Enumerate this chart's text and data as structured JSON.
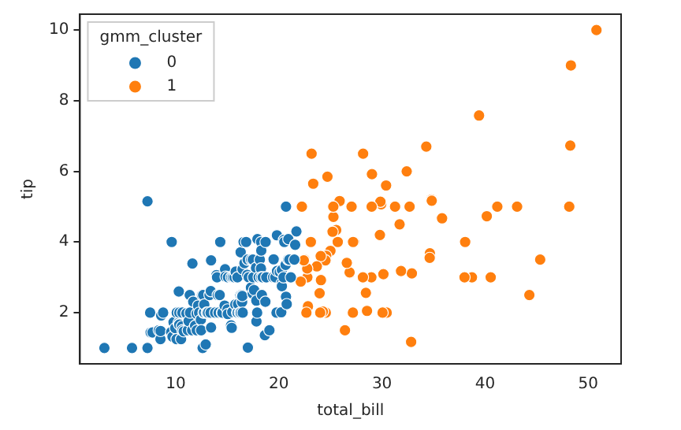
{
  "chart_data": {
    "type": "scatter",
    "xlabel": "total_bill",
    "ylabel": "tip",
    "legend_title": "gmm_cluster",
    "legend": "top left",
    "marker": "circle",
    "grid": false,
    "xlim": [
      0.7,
      53.2
    ],
    "xticks": [
      10,
      20,
      30,
      40,
      50
    ],
    "ylim": [
      0.55,
      10.45
    ],
    "yticks": [
      2,
      4,
      6,
      8,
      10
    ],
    "series": [
      {
        "name": "0",
        "color": "#1f77b4",
        "x": [
          3.07,
          5.75,
          7.25,
          7.25,
          7.51,
          7.56,
          7.74,
          8.35,
          8.51,
          8.52,
          8.58,
          8.77,
          9.55,
          9.6,
          9.68,
          9.78,
          9.94,
          10.07,
          10.09,
          10.27,
          10.29,
          10.33,
          10.34,
          10.34,
          10.51,
          10.59,
          10.63,
          10.65,
          10.77,
          11.02,
          11.17,
          11.24,
          11.35,
          11.38,
          11.59,
          11.61,
          11.69,
          11.87,
          12.02,
          12.03,
          12.16,
          12.26,
          12.43,
          12.46,
          12.54,
          12.6,
          12.66,
          12.69,
          12.74,
          12.76,
          12.9,
          13,
          13.03,
          13.13,
          13.27,
          13.37,
          13.39,
          13.42,
          13.42,
          13.81,
          13.94,
          14,
          14.07,
          14.15,
          14.26,
          14.31,
          14.48,
          14.52,
          14.73,
          14.78,
          14.83,
          15.01,
          15.04,
          15.06,
          15.36,
          15.38,
          15.42,
          15.48,
          15.53,
          15.69,
          15.77,
          15.81,
          15.95,
          15.98,
          16,
          16.04,
          16.21,
          16.27,
          16.29,
          16.31,
          16.4,
          16.43,
          16.45,
          16.47,
          16.49,
          16.58,
          16.66,
          16.82,
          16.93,
          16.97,
          16.99,
          17.07,
          17.29,
          17.31,
          17.46,
          17.47,
          17.51,
          17.59,
          17.78,
          17.81,
          17.82,
          17.89,
          17.92,
          18.04,
          18.15,
          18.24,
          18.26,
          18.28,
          18.29,
          18.29,
          18.35,
          18.43,
          18.64,
          18.69,
          18.71,
          18.78,
          19.08,
          19.44,
          19.49,
          19.65,
          19.77,
          19.81,
          19.82,
          20.08,
          20.23,
          20.27,
          20.29,
          20.29,
          20.45,
          20.49,
          20.53,
          20.65,
          20.69,
          20.69,
          20.76,
          20.9,
          20.92,
          21.01,
          21.16,
          21.5,
          21.58,
          21.7
        ],
        "values": [
          1,
          1,
          1,
          5.15,
          2,
          1.44,
          1.44,
          1.5,
          1.25,
          1.48,
          1.92,
          2,
          1.45,
          4,
          1.32,
          1.73,
          1.56,
          1.25,
          2,
          1.71,
          2.6,
          1.67,
          1.66,
          2,
          1.25,
          1.61,
          2,
          1.5,
          1.47,
          1.98,
          1.5,
          1.76,
          2.5,
          2,
          1.5,
          3.39,
          2.31,
          1.63,
          1.97,
          1.5,
          2.2,
          2,
          1.8,
          1.5,
          2.5,
          1,
          2.5,
          2,
          2.01,
          2.23,
          1.1,
          2,
          2,
          2,
          2.5,
          2,
          2.61,
          3.48,
          1.58,
          2,
          3.06,
          3,
          2.5,
          2,
          2.5,
          4,
          2,
          2,
          2.2,
          3.23,
          3.02,
          2.09,
          1.96,
          3,
          1.64,
          3,
          1.57,
          2.02,
          3,
          3,
          2.23,
          3.16,
          2,
          3,
          2,
          2.24,
          2,
          2.5,
          3.71,
          2,
          2.5,
          2.3,
          2.47,
          3.23,
          2,
          4,
          3.4,
          4,
          3.07,
          3.5,
          1.01,
          3,
          2.71,
          3.5,
          2.54,
          3.5,
          3,
          2.64,
          3.27,
          2.34,
          1.75,
          2,
          4.08,
          3,
          3.5,
          3.76,
          3.25,
          4,
          3,
          3.76,
          2.5,
          3,
          1.36,
          2.31,
          4,
          3,
          1.5,
          3,
          3.51,
          3,
          2,
          4.19,
          3.18,
          3.15,
          2.01,
          2.83,
          2.75,
          3.21,
          3,
          4.06,
          4,
          3.35,
          2.45,
          5,
          2.24,
          3.5,
          4.08,
          3.5,
          3,
          3.5,
          3.92,
          4.3
        ]
      },
      {
        "name": "1",
        "color": "#ff7f0e",
        "x": [
          50.81,
          48.33,
          48.27,
          48.17,
          39.42,
          45.35,
          44.3,
          43.11,
          41.19,
          40.55,
          40.17,
          38.73,
          38.07,
          38.01,
          35.83,
          34.81,
          34.83,
          34.65,
          34.63,
          34.3,
          32.9,
          32.83,
          32.68,
          32.4,
          31.85,
          31.71,
          31.27,
          30.46,
          30.4,
          30.14,
          30.06,
          29.93,
          29.85,
          29.8,
          29.03,
          29,
          28.97,
          28.55,
          28.44,
          28.17,
          28.15,
          27.28,
          27.2,
          27.18,
          27.05,
          26.88,
          26.86,
          26.59,
          26.41,
          25.89,
          25.71,
          25.56,
          25.29,
          25.28,
          25.21,
          25,
          24.71,
          24.59,
          24.55,
          24.52,
          24.27,
          24.08,
          24.06,
          24.01,
          23.95,
          23.68,
          23.33,
          23.17,
          23.1,
          22.82,
          22.76,
          22.75,
          22.67,
          22.49,
          22.42,
          22.23,
          22.12
        ],
        "values": [
          10,
          9,
          6.73,
          5,
          7.58,
          3.5,
          2.5,
          5,
          5,
          3,
          4.73,
          3,
          4,
          3,
          4.67,
          5.2,
          5.17,
          3.68,
          3.55,
          6.7,
          3.11,
          1.17,
          5,
          6,
          3.18,
          4.5,
          5,
          2,
          5.6,
          3.09,
          2,
          5.07,
          5.14,
          4.2,
          5.92,
          5,
          3,
          2.05,
          2.56,
          6.5,
          3,
          4,
          4,
          2,
          5,
          3.12,
          3.14,
          3.41,
          1.5,
          5.16,
          4,
          4.34,
          4.71,
          5,
          4.29,
          3.75,
          5.85,
          3.61,
          2,
          3.48,
          2.03,
          2.92,
          3.6,
          2,
          2.55,
          3.31,
          5.65,
          6.5,
          4,
          2.18,
          3,
          3.25,
          2,
          3.5,
          3.48,
          5,
          2.88
        ]
      }
    ]
  }
}
